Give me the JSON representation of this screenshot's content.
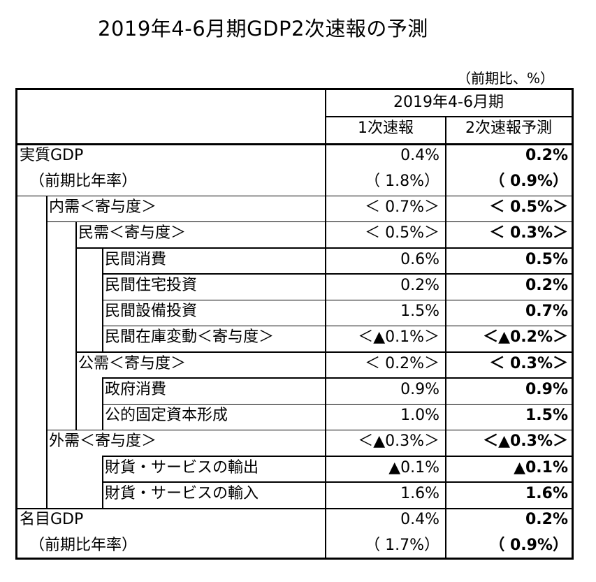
{
  "title": "2019年4-6月期GDP2次速報の予測",
  "unit": "（前期比、%）",
  "header": {
    "period": "2019年4-6月期",
    "col1": "1次速報",
    "col2": "2次速報予測"
  },
  "rows": [
    {
      "label": "実質GDP",
      "v1": "0.4%",
      "v2": "0.2%"
    },
    {
      "label": "（前期比年率）",
      "v1": "（ 1.8%）",
      "v2": "（ 0.9%）"
    },
    {
      "label": "内需＜寄与度＞",
      "v1": "＜ 0.7%＞",
      "v2": "＜ 0.5%＞"
    },
    {
      "label": "民需＜寄与度＞",
      "v1": "＜ 0.5%＞",
      "v2": "＜ 0.3%＞"
    },
    {
      "label": "民間消費",
      "v1": "0.6%",
      "v2": "0.5%"
    },
    {
      "label": "民間住宅投資",
      "v1": "0.2%",
      "v2": "0.2%"
    },
    {
      "label": "民間設備投資",
      "v1": "1.5%",
      "v2": "0.7%"
    },
    {
      "label": "民間在庫変動＜寄与度＞",
      "v1": "＜▲0.1%＞",
      "v2": "＜▲0.2%＞"
    },
    {
      "label": "公需＜寄与度＞",
      "v1": "＜ 0.2%＞",
      "v2": "＜ 0.3%＞"
    },
    {
      "label": "政府消費",
      "v1": "0.9%",
      "v2": "0.9%"
    },
    {
      "label": "公的固定資本形成",
      "v1": "1.0%",
      "v2": "1.5%"
    },
    {
      "label": "外需＜寄与度＞",
      "v1": "＜▲0.3%＞",
      "v2": "＜▲0.3%＞"
    },
    {
      "label": "財貨・サービスの輸出",
      "v1": "▲0.1%",
      "v2": "▲0.1%"
    },
    {
      "label": "財貨・サービスの輸入",
      "v1": "1.6%",
      "v2": "1.6%"
    },
    {
      "label": "名目GDP",
      "v1": "0.4%",
      "v2": "0.2%"
    },
    {
      "label": "（前期比年率）",
      "v1": "（ 1.7%）",
      "v2": "（ 0.9%）"
    }
  ]
}
